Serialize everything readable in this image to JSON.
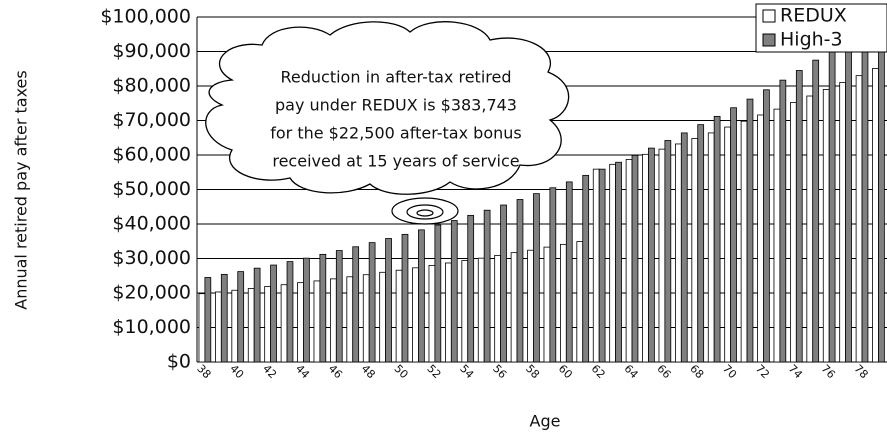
{
  "chart_data": {
    "type": "bar",
    "y_label": "Annual retired pay after taxes",
    "x_label": "Age",
    "annotation": [
      "Reduction in after-tax retired",
      "pay under REDUX is $383,743",
      "for the $22,500 after-tax bonus",
      "received at 15 years of service"
    ],
    "categories": [
      "38",
      null,
      "40",
      null,
      "42",
      null,
      "44",
      null,
      "46",
      null,
      "48",
      null,
      "50",
      null,
      "52",
      null,
      "54",
      null,
      "56",
      null,
      "58",
      null,
      "60",
      null,
      "62",
      null,
      "64",
      null,
      "66",
      null,
      "68",
      null,
      "70",
      null,
      "72",
      null,
      "74",
      null,
      "76",
      null,
      "78",
      null
    ],
    "series": [
      {
        "name": "REDUX",
        "color": "#ffffff",
        "values": [
          19800,
          20300,
          20800,
          21300,
          21900,
          22400,
          23000,
          23500,
          24100,
          24700,
          25300,
          26000,
          26600,
          27300,
          28000,
          28700,
          29400,
          30100,
          30900,
          31700,
          32400,
          33300,
          34100,
          34900,
          55900,
          57300,
          58700,
          60200,
          61700,
          63200,
          64800,
          66400,
          68100,
          69800,
          71600,
          73300,
          75200,
          77100,
          79000,
          81000,
          83000,
          85100
        ]
      },
      {
        "name": "High-3",
        "color": "#808080",
        "values": [
          24500,
          25400,
          26200,
          27200,
          28100,
          29100,
          30100,
          31200,
          32300,
          33400,
          34600,
          35800,
          37000,
          38300,
          39700,
          41000,
          42500,
          44000,
          45500,
          47100,
          48800,
          50500,
          52200,
          54100,
          55900,
          57900,
          59900,
          62000,
          64200,
          66400,
          68800,
          71200,
          73700,
          76200,
          78900,
          81700,
          84500,
          87500,
          90600,
          93700,
          97000,
          100000
        ]
      }
    ],
    "ylim": [
      0,
      100000
    ],
    "yticks": [
      {
        "value": 0,
        "label": "$0"
      },
      {
        "value": 10000,
        "label": "$10,000"
      },
      {
        "value": 20000,
        "label": "$20,000"
      },
      {
        "value": 30000,
        "label": "$30,000"
      },
      {
        "value": 40000,
        "label": "$40,000"
      },
      {
        "value": 50000,
        "label": "$50,000"
      },
      {
        "value": 60000,
        "label": "$60,000"
      },
      {
        "value": 70000,
        "label": "$70,000"
      },
      {
        "value": 80000,
        "label": "$80,000"
      },
      {
        "value": 90000,
        "label": "$90,000"
      },
      {
        "value": 100000,
        "label": "$100,000"
      }
    ],
    "grid": true,
    "legend": "upper right"
  }
}
